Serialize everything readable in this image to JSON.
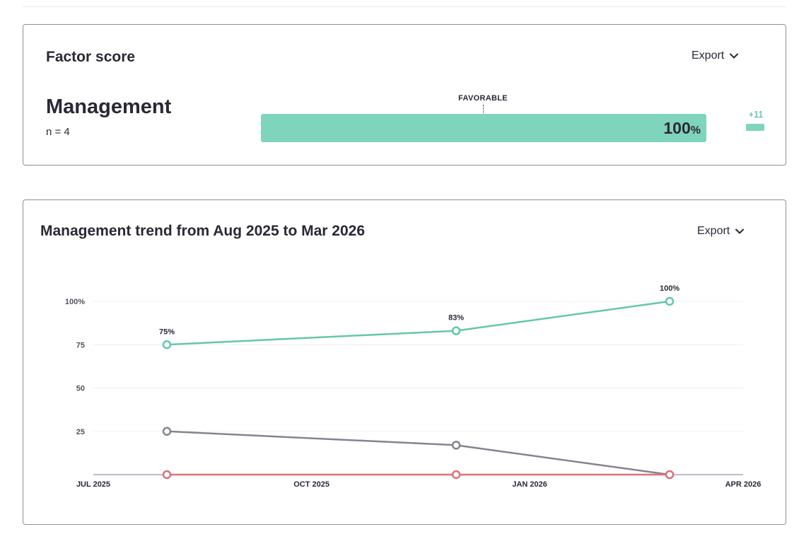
{
  "factor_card": {
    "title": "Factor score",
    "export_label": "Export",
    "factor_name": "Management",
    "n_label": "n = 4",
    "favorable_label": "FAVORABLE",
    "score": 100,
    "score_text": "100",
    "score_unit": "%",
    "delta_text": "+11",
    "colors": {
      "favorable": "#7fd4bc",
      "delta": "#3fae8e"
    }
  },
  "trend_card": {
    "title": "Management trend from Aug 2025 to Mar 2026",
    "export_label": "Export"
  },
  "chart_data": {
    "type": "line",
    "x_range": [
      "2025-07-01",
      "2026-04-01"
    ],
    "x_ticks": [
      {
        "date": "2025-07-01",
        "label": "JUL 2025"
      },
      {
        "date": "2025-10-01",
        "label": "OCT 2025"
      },
      {
        "date": "2026-01-01",
        "label": "JAN 2026"
      },
      {
        "date": "2026-04-01",
        "label": "APR 2026"
      }
    ],
    "y_range": [
      0,
      100
    ],
    "y_ticks": [
      {
        "value": 25,
        "label": "25"
      },
      {
        "value": 50,
        "label": "50"
      },
      {
        "value": 75,
        "label": "75"
      },
      {
        "value": 100,
        "label": "100%"
      }
    ],
    "grid": true,
    "legend": "none",
    "series": [
      {
        "color": "#63c7aa",
        "points": [
          {
            "date": "2025-08-01",
            "value": 75,
            "label": "75%"
          },
          {
            "date": "2025-12-01",
            "value": 83,
            "label": "83%"
          },
          {
            "date": "2026-03-01",
            "value": 100,
            "label": "100%"
          }
        ]
      },
      {
        "color": "#86838e",
        "points": [
          {
            "date": "2025-08-01",
            "value": 25
          },
          {
            "date": "2025-12-01",
            "value": 17
          },
          {
            "date": "2026-03-01",
            "value": 0
          }
        ]
      },
      {
        "color": "#d9727b",
        "points": [
          {
            "date": "2025-08-01",
            "value": 0
          },
          {
            "date": "2025-12-01",
            "value": 0
          },
          {
            "date": "2026-03-01",
            "value": 0
          }
        ]
      }
    ]
  }
}
